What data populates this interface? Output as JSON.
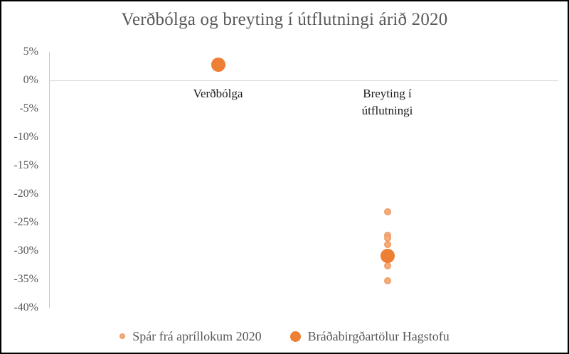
{
  "title": "Verðbólga og breyting í útflutningi árið 2020",
  "y_axis": {
    "tick_labels": [
      "5%",
      "0%",
      "-5%",
      "-10%",
      "-15%",
      "-20%",
      "-25%",
      "-30%",
      "-35%",
      "-40%"
    ]
  },
  "categories": [
    {
      "label": "Verðbólga",
      "lines": [
        "Verðbólga"
      ]
    },
    {
      "label": "Breyting í útflutningi",
      "lines": [
        "Breyting í",
        "útflutningi"
      ]
    }
  ],
  "legend": {
    "items": [
      {
        "label": "Spár frá apríllokum 2020",
        "marker": "small-light-orange-dot",
        "series": "forecasts"
      },
      {
        "label": "Bráðabirgðartölur Hagstofu",
        "marker": "large-orange-dot",
        "series": "official"
      }
    ]
  },
  "colors": {
    "accent_orange": "#ED7D31",
    "light_orange": "#F1A067",
    "axis_line_gray": "#C8C8C8",
    "zero_line_gray": "#D9D9D9",
    "text_gray": "#595959",
    "category_text": "#1A1A1A",
    "frame_border": "#000000",
    "background": "#FFFFFF"
  },
  "chart_data": {
    "type": "scatter",
    "title": "Verðbólga og breyting í útflutningi árið 2020",
    "categories": [
      "Verðbólga",
      "Breyting í útflutningi"
    ],
    "y_axis": {
      "min": -40,
      "max": 5,
      "tick_step": 5,
      "unit": "%"
    },
    "grid": "zero-line-only",
    "legend_position": "bottom",
    "series": [
      {
        "name": "Spár frá apríllokum 2020",
        "marker_size_px": 10,
        "color": "#F1A067",
        "points": [
          {
            "category": "Breyting í útflutningi",
            "value_pct": -23.1
          },
          {
            "category": "Breyting í útflutningi",
            "value_pct": -27.2
          },
          {
            "category": "Breyting í útflutningi",
            "value_pct": -27.7
          },
          {
            "category": "Breyting í útflutningi",
            "value_pct": -28.9
          },
          {
            "category": "Breyting í útflutningi",
            "value_pct": -32.6
          },
          {
            "category": "Breyting í útflutningi",
            "value_pct": -35.2
          }
        ]
      },
      {
        "name": "Bráðabirgðartölur Hagstofu",
        "marker_size_px": 20,
        "color": "#ED7D31",
        "points": [
          {
            "category": "Verðbólga",
            "value_pct": 2.7
          },
          {
            "category": "Breyting í útflutningi",
            "value_pct": -30.9
          }
        ]
      }
    ]
  }
}
